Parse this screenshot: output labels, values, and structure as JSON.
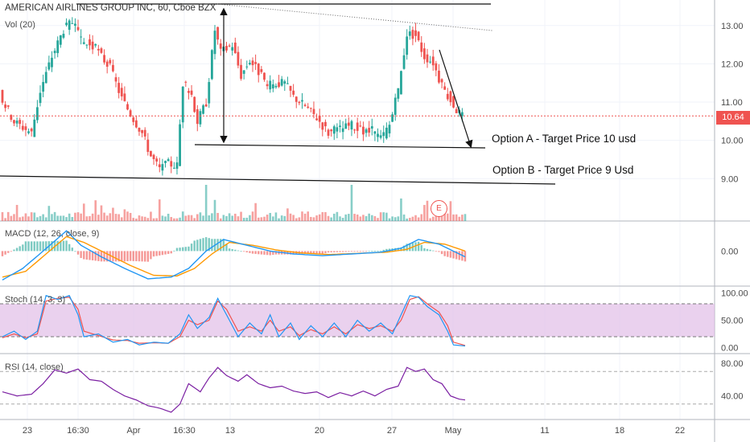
{
  "header": {
    "symbol_line": "AMERICAN AIRLINES GROUP INC, 60, Cboe BZX",
    "volume_label": "Vol (20)"
  },
  "indicators": {
    "macd_label": "MACD (12, 26, close, 9)",
    "stoch_label": "Stoch (14, 3, 3)",
    "rsi_label": "RSI (14, close)"
  },
  "annotations": {
    "option_a": "Option A - Target Price 10 usd",
    "option_b": "Option B - Target Price 9 Usd",
    "earnings_marker": "E"
  },
  "last_price_label": "10.64",
  "colors": {
    "up": "#26a69a",
    "down": "#ef5350",
    "macd_line": "#2196f3",
    "signal_line": "#ff9800",
    "stoch_k": "#2196f3",
    "stoch_d": "#ef5350",
    "stoch_band": "#e1bee7",
    "rsi_line": "#7b1fa2",
    "grid": "#f0f3fa",
    "axis_text": "#4a4a4a"
  },
  "chart_data": {
    "type": "candlestick",
    "price_axis": {
      "ticks": [
        "13.00",
        "12.00",
        "11.00",
        "10.00",
        "9.00"
      ],
      "range": [
        8.25,
        13.5
      ]
    },
    "x_axis": {
      "ticks": [
        "23",
        "16:30",
        "Apr",
        "16:30",
        "13",
        "20",
        "27",
        "May",
        "11",
        "18",
        "22"
      ]
    },
    "last_price": 10.64,
    "price_path": [
      [
        0,
        11.2
      ],
      [
        5,
        10.5
      ],
      [
        11,
        10.2
      ],
      [
        14,
        11.3
      ],
      [
        18,
        12.2
      ],
      [
        22,
        12.9
      ],
      [
        25,
        13.1
      ],
      [
        28,
        12.6
      ],
      [
        33,
        12.4
      ],
      [
        38,
        11.9
      ],
      [
        42,
        11.1
      ],
      [
        45,
        10.7
      ],
      [
        49,
        10.2
      ],
      [
        52,
        9.6
      ],
      [
        55,
        9.25
      ],
      [
        58,
        9.4
      ],
      [
        61,
        9.35
      ],
      [
        63,
        11.5
      ],
      [
        66,
        11.2
      ],
      [
        68,
        10.5
      ],
      [
        71,
        11.0
      ],
      [
        74,
        12.9
      ],
      [
        76,
        12.3
      ],
      [
        80,
        12.5
      ],
      [
        83,
        11.7
      ],
      [
        86,
        12.1
      ],
      [
        89,
        11.8
      ],
      [
        92,
        11.4
      ],
      [
        95,
        11.5
      ],
      [
        98,
        11.5
      ],
      [
        101,
        11.15
      ],
      [
        105,
        10.9
      ],
      [
        109,
        10.6
      ],
      [
        113,
        10.2
      ],
      [
        117,
        10.3
      ],
      [
        121,
        10.4
      ],
      [
        125,
        10.2
      ],
      [
        128,
        10.25
      ],
      [
        131,
        10.05
      ],
      [
        134,
        10.4
      ],
      [
        137,
        11.3
      ],
      [
        140,
        12.8
      ],
      [
        143,
        12.75
      ],
      [
        146,
        12.2
      ],
      [
        149,
        12.05
      ],
      [
        152,
        11.4
      ],
      [
        155,
        11.05
      ],
      [
        157,
        10.8
      ],
      [
        159,
        10.64
      ]
    ],
    "volume_axis_max": 80,
    "macd_axis": {
      "ticks": [
        "0.00"
      ],
      "range": [
        -0.55,
        0.45
      ]
    },
    "macd_line": [
      [
        0,
        -0.5
      ],
      [
        7,
        -0.3
      ],
      [
        14,
        0.0
      ],
      [
        22,
        0.35
      ],
      [
        27,
        0.1
      ],
      [
        34,
        -0.1
      ],
      [
        42,
        -0.3
      ],
      [
        50,
        -0.48
      ],
      [
        58,
        -0.45
      ],
      [
        64,
        -0.3
      ],
      [
        70,
        0.0
      ],
      [
        76,
        0.2
      ],
      [
        84,
        0.1
      ],
      [
        92,
        0.0
      ],
      [
        100,
        -0.05
      ],
      [
        110,
        -0.08
      ],
      [
        120,
        -0.05
      ],
      [
        130,
        -0.02
      ],
      [
        137,
        0.05
      ],
      [
        143,
        0.2
      ],
      [
        150,
        0.12
      ],
      [
        159,
        -0.1
      ]
    ],
    "signal_line": [
      [
        0,
        -0.45
      ],
      [
        8,
        -0.35
      ],
      [
        15,
        -0.05
      ],
      [
        22,
        0.25
      ],
      [
        28,
        0.15
      ],
      [
        36,
        -0.05
      ],
      [
        44,
        -0.25
      ],
      [
        52,
        -0.42
      ],
      [
        60,
        -0.43
      ],
      [
        66,
        -0.3
      ],
      [
        72,
        -0.05
      ],
      [
        78,
        0.15
      ],
      [
        86,
        0.1
      ],
      [
        94,
        0.02
      ],
      [
        102,
        -0.03
      ],
      [
        112,
        -0.06
      ],
      [
        122,
        -0.04
      ],
      [
        132,
        -0.02
      ],
      [
        139,
        0.03
      ],
      [
        145,
        0.15
      ],
      [
        152,
        0.12
      ],
      [
        159,
        0.0
      ]
    ],
    "stoch_axis": {
      "ticks": [
        "100.00",
        "50.00",
        "0.00"
      ],
      "range": [
        -5,
        105
      ],
      "band": [
        20,
        80
      ]
    },
    "stoch_k": [
      [
        0,
        20
      ],
      [
        4,
        30
      ],
      [
        8,
        15
      ],
      [
        12,
        30
      ],
      [
        15,
        95
      ],
      [
        19,
        88
      ],
      [
        23,
        95
      ],
      [
        26,
        60
      ],
      [
        28,
        20
      ],
      [
        33,
        25
      ],
      [
        38,
        10
      ],
      [
        43,
        15
      ],
      [
        47,
        5
      ],
      [
        52,
        10
      ],
      [
        57,
        8
      ],
      [
        61,
        25
      ],
      [
        64,
        60
      ],
      [
        67,
        35
      ],
      [
        71,
        55
      ],
      [
        74,
        90
      ],
      [
        77,
        60
      ],
      [
        81,
        20
      ],
      [
        85,
        45
      ],
      [
        89,
        25
      ],
      [
        92,
        60
      ],
      [
        95,
        20
      ],
      [
        99,
        45
      ],
      [
        102,
        15
      ],
      [
        106,
        40
      ],
      [
        110,
        20
      ],
      [
        114,
        45
      ],
      [
        118,
        20
      ],
      [
        122,
        50
      ],
      [
        126,
        30
      ],
      [
        130,
        45
      ],
      [
        134,
        25
      ],
      [
        137,
        60
      ],
      [
        140,
        95
      ],
      [
        143,
        92
      ],
      [
        146,
        75
      ],
      [
        150,
        60
      ],
      [
        153,
        30
      ],
      [
        155,
        5
      ],
      [
        159,
        3
      ]
    ],
    "stoch_d": [
      [
        0,
        18
      ],
      [
        4,
        25
      ],
      [
        8,
        18
      ],
      [
        12,
        25
      ],
      [
        15,
        85
      ],
      [
        19,
        90
      ],
      [
        23,
        92
      ],
      [
        26,
        70
      ],
      [
        28,
        30
      ],
      [
        33,
        22
      ],
      [
        38,
        14
      ],
      [
        43,
        13
      ],
      [
        47,
        8
      ],
      [
        52,
        9
      ],
      [
        57,
        8
      ],
      [
        61,
        20
      ],
      [
        64,
        50
      ],
      [
        67,
        42
      ],
      [
        71,
        50
      ],
      [
        74,
        85
      ],
      [
        77,
        70
      ],
      [
        81,
        30
      ],
      [
        85,
        38
      ],
      [
        89,
        30
      ],
      [
        92,
        50
      ],
      [
        95,
        30
      ],
      [
        99,
        38
      ],
      [
        102,
        22
      ],
      [
        106,
        33
      ],
      [
        110,
        25
      ],
      [
        114,
        38
      ],
      [
        118,
        25
      ],
      [
        122,
        42
      ],
      [
        126,
        35
      ],
      [
        130,
        40
      ],
      [
        134,
        30
      ],
      [
        137,
        50
      ],
      [
        140,
        88
      ],
      [
        143,
        93
      ],
      [
        146,
        80
      ],
      [
        150,
        65
      ],
      [
        153,
        40
      ],
      [
        155,
        10
      ],
      [
        159,
        4
      ]
    ],
    "rsi_axis": {
      "ticks": [
        "80.00",
        "40.00"
      ],
      "range": [
        15,
        87
      ],
      "levels": [
        70,
        30
      ]
    },
    "rsi": [
      [
        0,
        45
      ],
      [
        5,
        40
      ],
      [
        10,
        42
      ],
      [
        14,
        55
      ],
      [
        18,
        72
      ],
      [
        22,
        68
      ],
      [
        26,
        73
      ],
      [
        30,
        60
      ],
      [
        34,
        58
      ],
      [
        38,
        48
      ],
      [
        42,
        40
      ],
      [
        46,
        35
      ],
      [
        50,
        28
      ],
      [
        54,
        25
      ],
      [
        58,
        20
      ],
      [
        61,
        30
      ],
      [
        64,
        55
      ],
      [
        68,
        45
      ],
      [
        71,
        62
      ],
      [
        74,
        75
      ],
      [
        77,
        65
      ],
      [
        81,
        58
      ],
      [
        84,
        66
      ],
      [
        88,
        55
      ],
      [
        92,
        50
      ],
      [
        96,
        52
      ],
      [
        100,
        46
      ],
      [
        104,
        43
      ],
      [
        108,
        45
      ],
      [
        112,
        38
      ],
      [
        116,
        44
      ],
      [
        120,
        40
      ],
      [
        124,
        46
      ],
      [
        128,
        40
      ],
      [
        132,
        48
      ],
      [
        136,
        52
      ],
      [
        139,
        75
      ],
      [
        142,
        70
      ],
      [
        145,
        73
      ],
      [
        148,
        60
      ],
      [
        151,
        55
      ],
      [
        154,
        40
      ],
      [
        157,
        36
      ],
      [
        159,
        35
      ]
    ]
  }
}
